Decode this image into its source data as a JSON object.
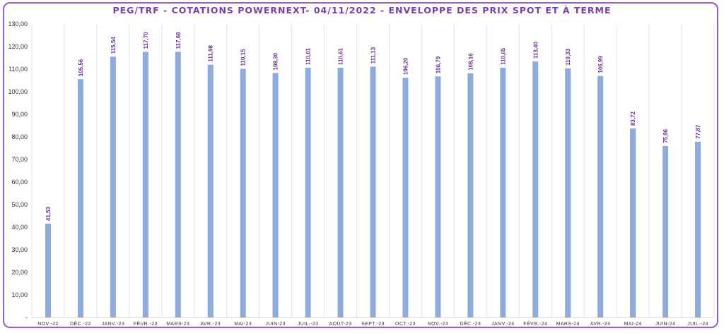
{
  "chart_data": {
    "type": "bar",
    "title": "PEG/TRF - COTATIONS POWERNEXT- 04/11/2022 - ENVELOPPE DES PRIX SPOT ET À TERME",
    "categories": [
      "NOV.-22",
      "DÉC.-22",
      "JANV.-23",
      "FÉVR.-23",
      "MARS-23",
      "AVR.-23",
      "MAI-23",
      "JUIN-23",
      "JUIL.-23",
      "AOÛT-23",
      "SEPT.-23",
      "OCT.-23",
      "NOV.-23",
      "DÉC.-23",
      "JANV.-24",
      "FÉVR.-24",
      "MARS-24",
      "AVR.-24",
      "MAI-24",
      "JUIN-24",
      "JUIL.-24"
    ],
    "values": [
      41.53,
      105.56,
      115.54,
      117.7,
      117.68,
      111.98,
      110.15,
      108.3,
      110.61,
      110.61,
      111.13,
      106.2,
      106.79,
      108.16,
      110.65,
      113.4,
      110.33,
      106.99,
      83.72,
      75.96,
      77.87
    ],
    "value_labels": [
      "41,53",
      "105,56",
      "115,54",
      "117,70",
      "117,68",
      "111,98",
      "110,15",
      "108,30",
      "110,61",
      "110,61",
      "111,13",
      "106,20",
      "106,79",
      "108,16",
      "110,65",
      "113,40",
      "110,33",
      "106,99",
      "83,72",
      "75,96",
      "77,87"
    ],
    "ylim": [
      0,
      130
    ],
    "yticks": [
      0,
      10,
      20,
      30,
      40,
      50,
      60,
      70,
      80,
      90,
      100,
      110,
      120,
      130
    ],
    "ytick_labels": [
      "-",
      "10,00",
      "20,00",
      "30,00",
      "40,00",
      "50,00",
      "60,00",
      "70,00",
      "80,00",
      "90,00",
      "100,00",
      "110,00",
      "120,00",
      "130,00"
    ],
    "xlabel": "",
    "ylabel": "",
    "grid": "vertical separators",
    "legend": "none",
    "colors": {
      "bar": "#8faadc",
      "label": "#6a2f98",
      "title": "#7a3fa8",
      "border": "#9b59c9"
    }
  }
}
